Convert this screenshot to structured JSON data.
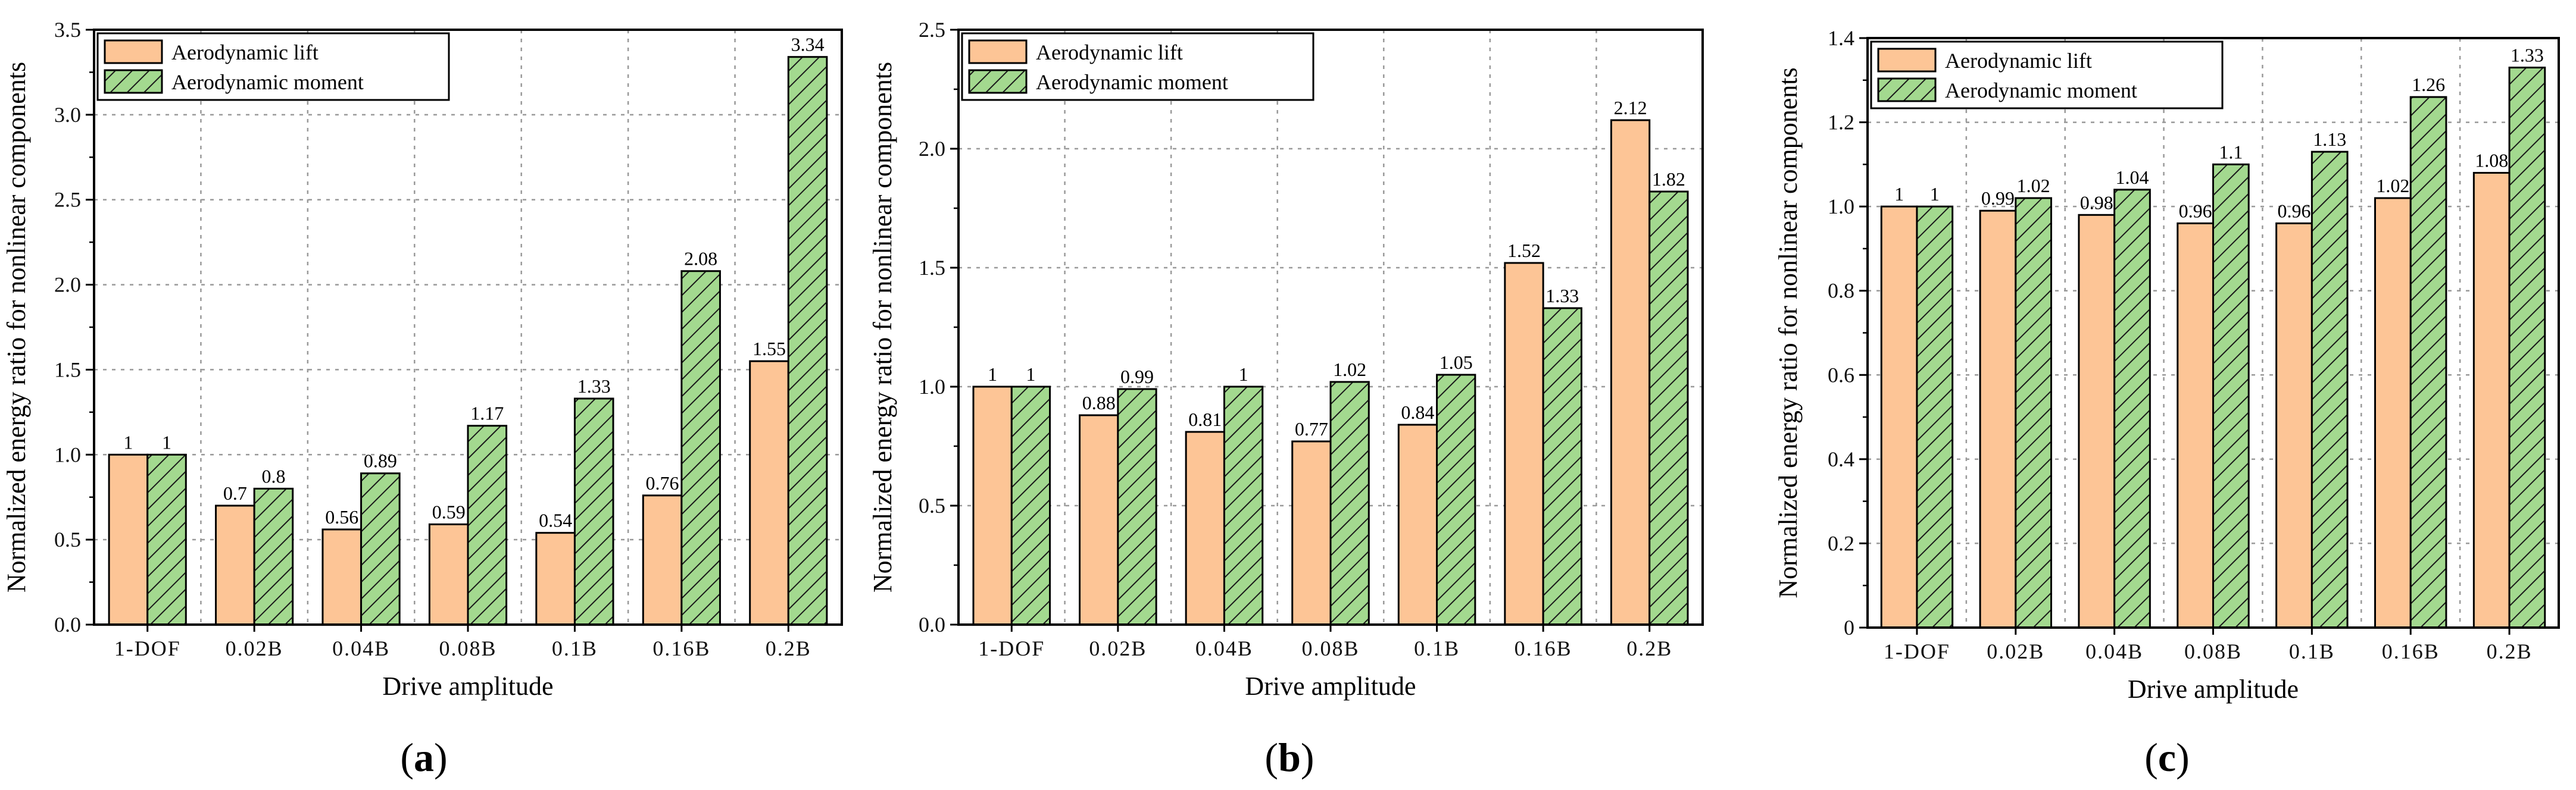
{
  "colors": {
    "lift": "#fdc596",
    "moment": "#a3d98f",
    "hatch": "#1a1a1a",
    "grid": "#9a9a9a"
  },
  "chart_data": [
    {
      "type": "bar",
      "panel_label": "a",
      "categories": [
        "1-DOF",
        "0.02B",
        "0.04B",
        "0.08B",
        "0.1B",
        "0.16B",
        "0.2B"
      ],
      "series": [
        {
          "name": "Aerodynamic lift",
          "values": [
            1,
            0.7,
            0.56,
            0.59,
            0.54,
            0.76,
            1.55
          ],
          "labels": [
            "1",
            "0.7",
            "0.56",
            "0.59",
            "0.54",
            "0.76",
            "1.55"
          ]
        },
        {
          "name": "Aerodynamic moment",
          "values": [
            1,
            0.8,
            0.89,
            1.17,
            1.33,
            2.08,
            3.34
          ],
          "labels": [
            "1",
            "0.8",
            "0.89",
            "1.17",
            "1.33",
            "2.08",
            "3.34"
          ]
        }
      ],
      "xlabel": "Drive amplitude",
      "ylabel": "Normalized energy ratio for nonlinear components",
      "ylim": [
        0,
        3.5
      ],
      "yticks": [
        0,
        0.5,
        1,
        1.5,
        2,
        2.5,
        3,
        3.5
      ],
      "ytick_labels": [
        "0.0",
        "0.5",
        "1.0",
        "1.5",
        "2.0",
        "2.5",
        "3.0",
        "3.5"
      ],
      "grid": true,
      "legend_position": "top-left"
    },
    {
      "type": "bar",
      "panel_label": "b",
      "categories": [
        "1-DOF",
        "0.02B",
        "0.04B",
        "0.08B",
        "0.1B",
        "0.16B",
        "0.2B"
      ],
      "series": [
        {
          "name": "Aerodynamic lift",
          "values": [
            1,
            0.88,
            0.81,
            0.77,
            0.84,
            1.52,
            2.12
          ],
          "labels": [
            "1",
            "0.88",
            "0.81",
            "0.77",
            "0.84",
            "1.52",
            "2.12"
          ]
        },
        {
          "name": "Aerodynamic moment",
          "values": [
            1,
            0.99,
            1,
            1.02,
            1.05,
            1.33,
            1.82
          ],
          "labels": [
            "1",
            "0.99",
            "1",
            "1.02",
            "1.05",
            "1.33",
            "1.82"
          ]
        }
      ],
      "xlabel": "Drive amplitude",
      "ylabel": "Normalized energy ratio for nonlinear components",
      "ylim": [
        0,
        2.5
      ],
      "yticks": [
        0,
        0.5,
        1,
        1.5,
        2,
        2.5
      ],
      "ytick_labels": [
        "0.0",
        "0.5",
        "1.0",
        "1.5",
        "2.0",
        "2.5"
      ],
      "grid": true,
      "legend_position": "top-left"
    },
    {
      "type": "bar",
      "panel_label": "c",
      "categories": [
        "1-DOF",
        "0.02B",
        "0.04B",
        "0.08B",
        "0.1B",
        "0.16B",
        "0.2B"
      ],
      "series": [
        {
          "name": "Aerodynamic lift",
          "values": [
            1,
            0.99,
            0.98,
            0.96,
            0.96,
            1.02,
            1.08
          ],
          "labels": [
            "1",
            "0.99",
            "0.98",
            "0.96",
            "0.96",
            "1.02",
            "1.08"
          ]
        },
        {
          "name": "Aerodynamic moment",
          "values": [
            1,
            1.02,
            1.04,
            1.1,
            1.13,
            1.26,
            1.33
          ],
          "labels": [
            "1",
            "1.02",
            "1.04",
            "1.1",
            "1.13",
            "1.26",
            "1.33"
          ]
        }
      ],
      "xlabel": "Drive amplitude",
      "ylabel": "Normalized energy ratio for nonlinear components",
      "ylim": [
        0,
        1.4
      ],
      "yticks": [
        0,
        0.2,
        0.4,
        0.6,
        0.8,
        1,
        1.2,
        1.4
      ],
      "ytick_labels": [
        "0",
        "0.2",
        "0.4",
        "0.6",
        "0.8",
        "1.0",
        "1.2",
        "1.4"
      ],
      "grid": true,
      "legend_position": "top-left"
    }
  ]
}
